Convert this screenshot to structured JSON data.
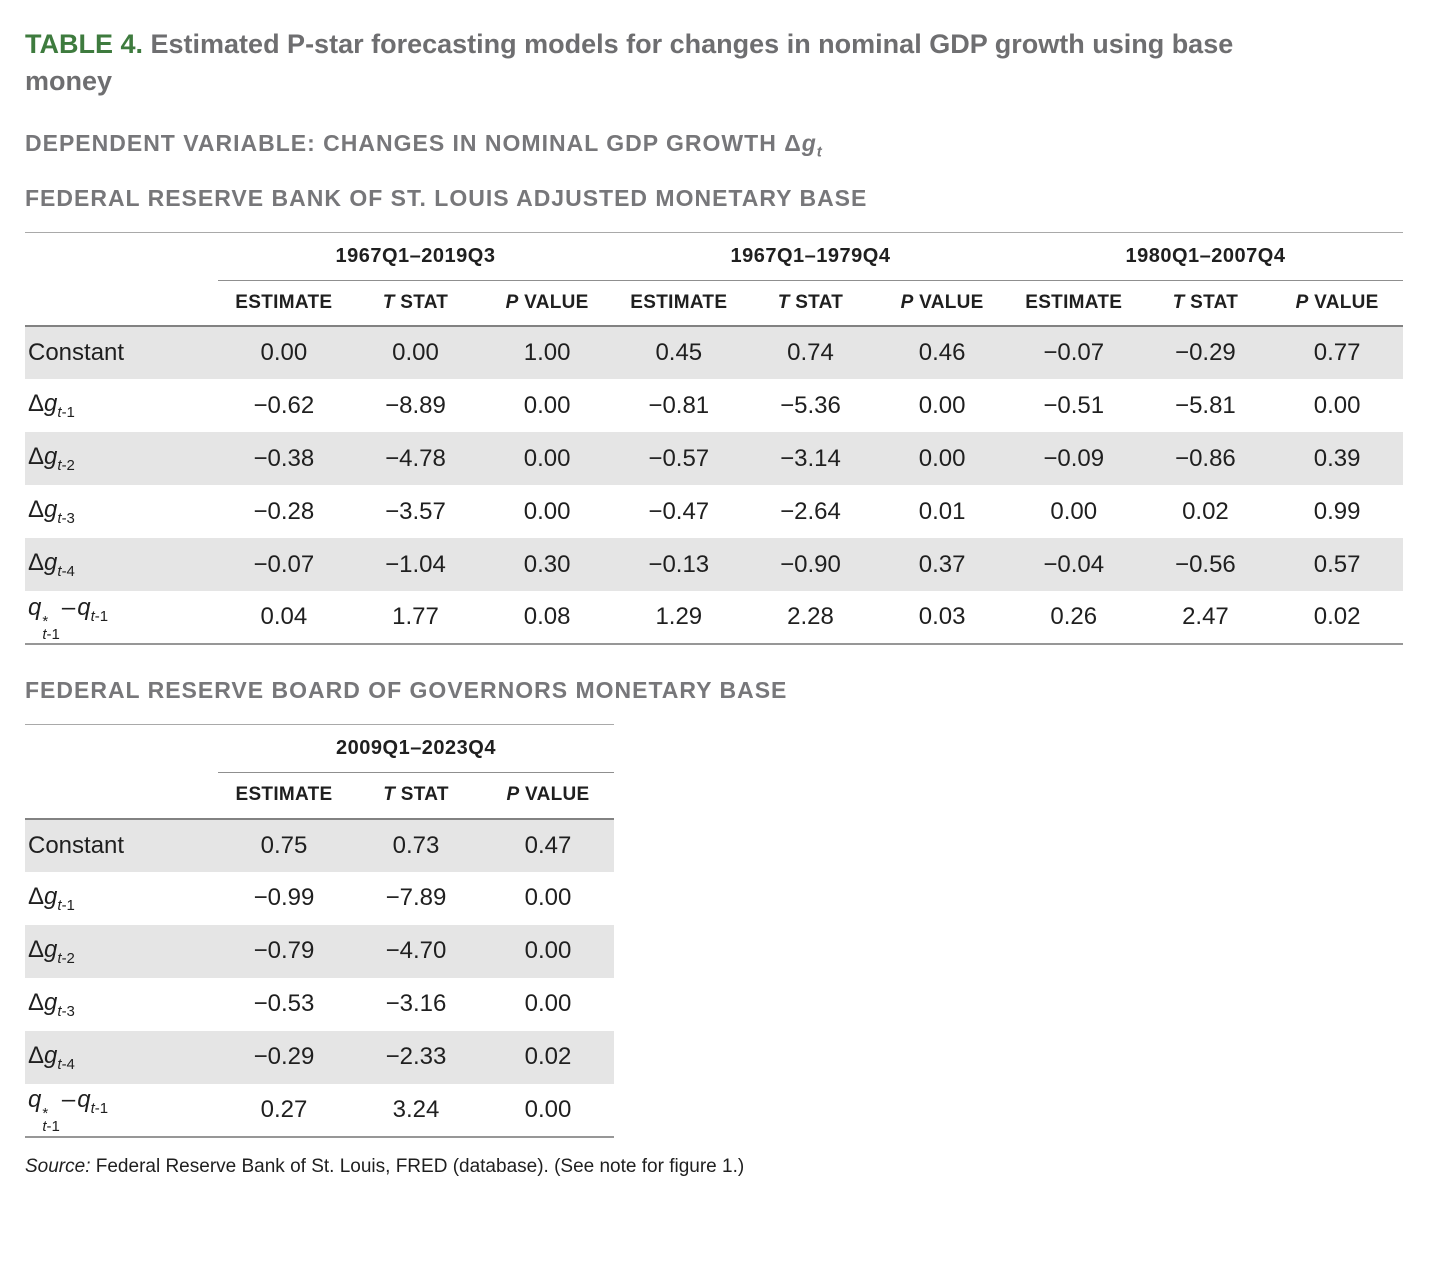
{
  "title": {
    "tag": "TABLE 4.",
    "text": " Estimated P-star forecasting models for changes in nominal GDP growth using base\nmoney"
  },
  "dep_heading": {
    "text": "DEPENDENT VARIABLE: CHANGES IN NOMINAL GDP GROWTH ",
    "var": {
      "delta": "Δ",
      "g": "g",
      "sub": "t"
    }
  },
  "section1_heading": "FEDERAL RESERVE BANK OF ST. LOUIS ADJUSTED MONETARY BASE",
  "section2_heading": "FEDERAL RESERVE BOARD OF GOVERNORS MONETARY BASE",
  "cols": {
    "estimate": "ESTIMATE",
    "t_i": "T",
    "t_r": " STAT",
    "p_i": "P",
    "p_r": " VALUE"
  },
  "labels": {
    "constant": "Constant",
    "dg": {
      "delta": "Δ",
      "g": "g"
    },
    "dg_subs": [
      {
        "i": "t",
        "r": "-1"
      },
      {
        "i": "t",
        "r": "-2"
      },
      {
        "i": "t",
        "r": "-3"
      },
      {
        "i": "t",
        "r": "-4"
      }
    ],
    "qdiff": {
      "q1": "q",
      "star": "*",
      "sub1_i": "t",
      "sub1_r": "-1",
      "dash": "–",
      "q2": "q",
      "sub2_i": "t",
      "sub2_r": "-1"
    }
  },
  "t1": {
    "groups": [
      "1967Q1–2019Q3",
      "1967Q1–1979Q4",
      "1980Q1–2007Q4"
    ],
    "rows": [
      {
        "values": [
          "0.00",
          "0.00",
          "1.00",
          "0.45",
          "0.74",
          "0.46",
          "−0.07",
          "−0.29",
          "0.77"
        ]
      },
      {
        "values": [
          "−0.62",
          "−8.89",
          "0.00",
          "−0.81",
          "−5.36",
          "0.00",
          "−0.51",
          "−5.81",
          "0.00"
        ]
      },
      {
        "values": [
          "−0.38",
          "−4.78",
          "0.00",
          "−0.57",
          "−3.14",
          "0.00",
          "−0.09",
          "−0.86",
          "0.39"
        ]
      },
      {
        "values": [
          "−0.28",
          "−3.57",
          "0.00",
          "−0.47",
          "−2.64",
          "0.01",
          "0.00",
          "0.02",
          "0.99"
        ]
      },
      {
        "values": [
          "−0.07",
          "−1.04",
          "0.30",
          "−0.13",
          "−0.90",
          "0.37",
          "−0.04",
          "−0.56",
          "0.57"
        ]
      },
      {
        "values": [
          "0.04",
          "1.77",
          "0.08",
          "1.29",
          "2.28",
          "0.03",
          "0.26",
          "2.47",
          "0.02"
        ]
      }
    ]
  },
  "t2": {
    "group": "2009Q1–2023Q4",
    "rows": [
      {
        "values": [
          "0.75",
          "0.73",
          "0.47"
        ]
      },
      {
        "values": [
          "−0.99",
          "−7.89",
          "0.00"
        ]
      },
      {
        "values": [
          "−0.79",
          "−4.70",
          "0.00"
        ]
      },
      {
        "values": [
          "−0.53",
          "−3.16",
          "0.00"
        ]
      },
      {
        "values": [
          "−0.29",
          "−2.33",
          "0.02"
        ]
      },
      {
        "values": [
          "0.27",
          "3.24",
          "0.00"
        ]
      }
    ]
  },
  "source": {
    "label": "Source:",
    "text": " Federal Reserve Bank of St. Louis, FRED (database). (See note for figure 1.)"
  }
}
